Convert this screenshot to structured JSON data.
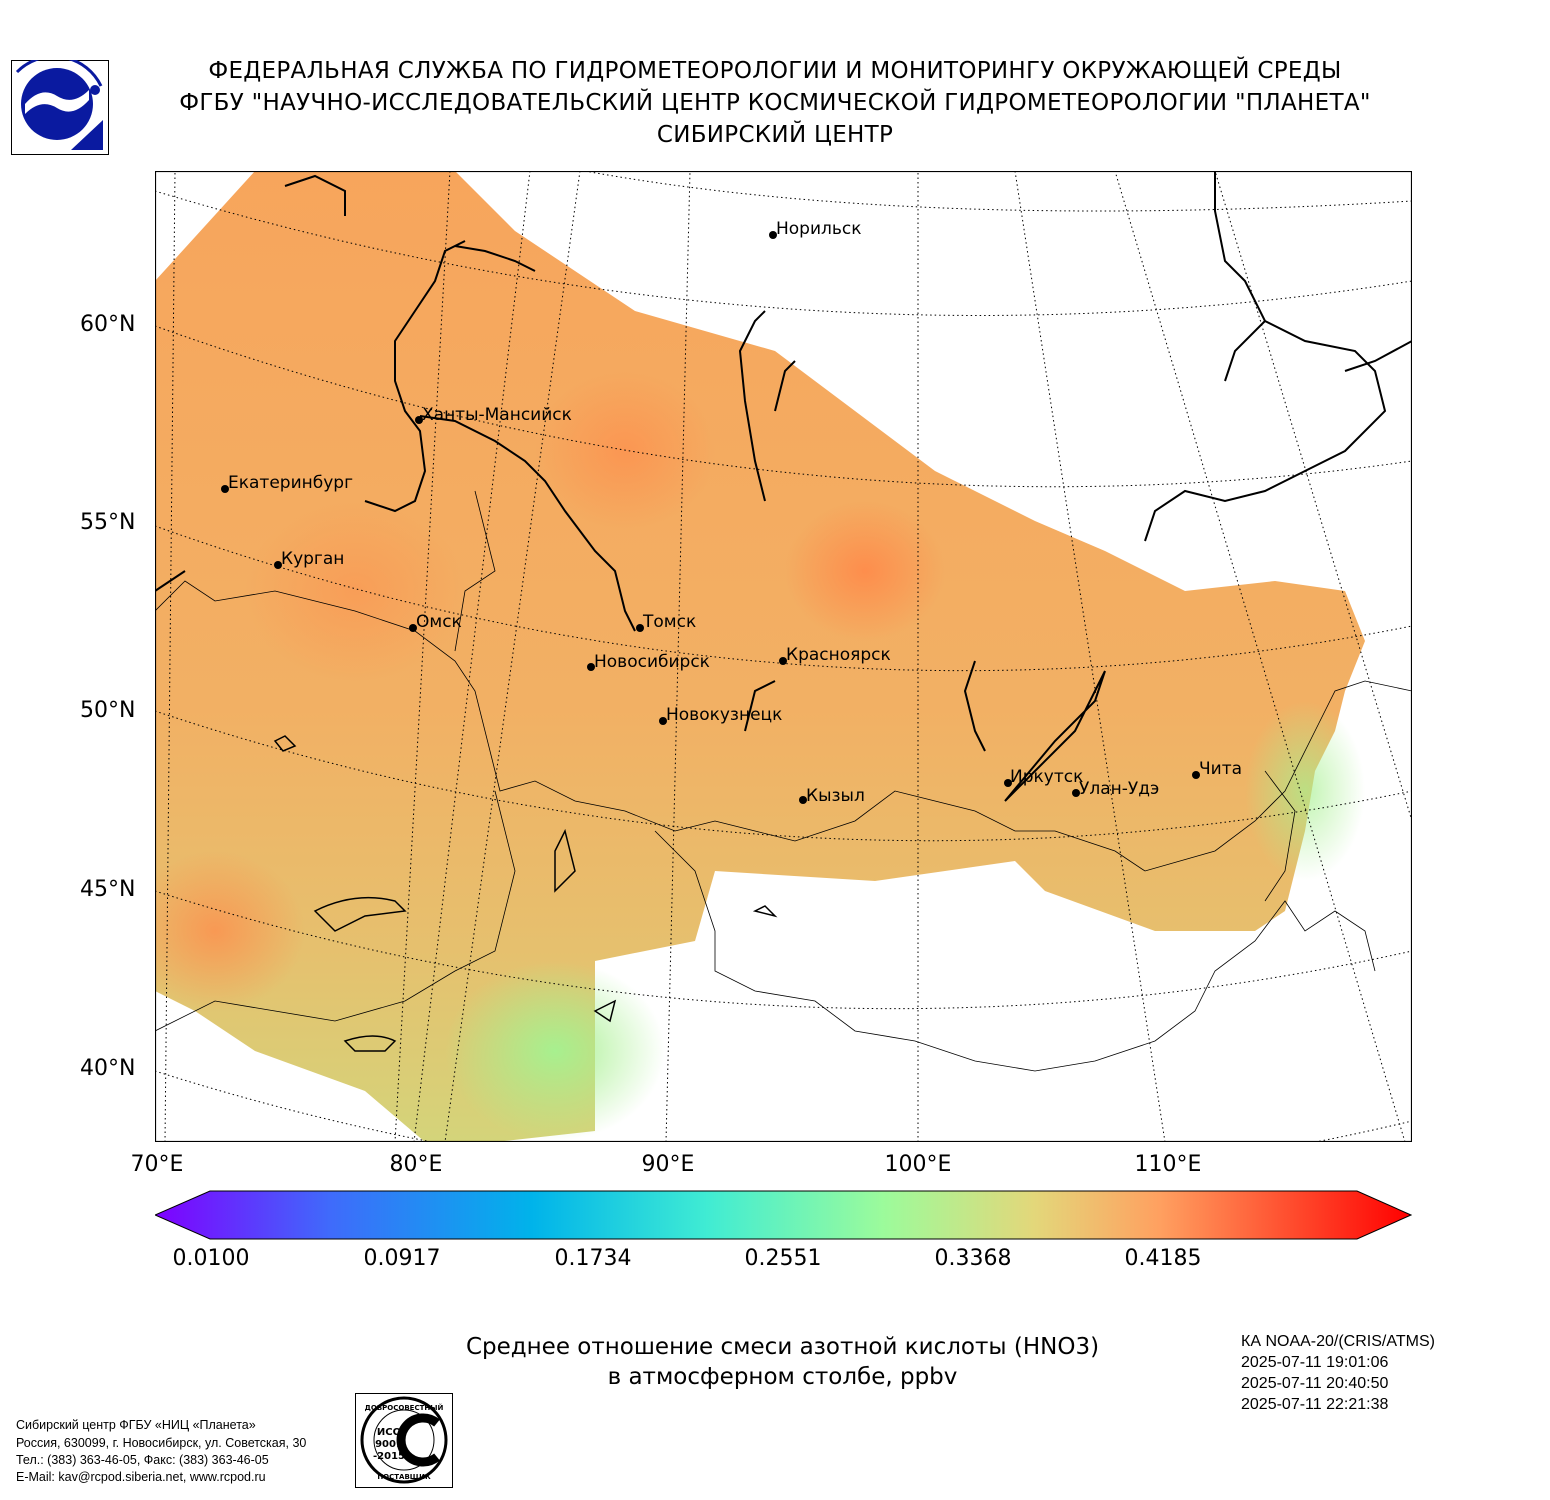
{
  "header": {
    "lines": [
      "ФЕДЕРАЛЬНАЯ СЛУЖБА ПО ГИДРОМЕТЕОРОЛОГИИ И МОНИТОРИНГУ ОКРУЖАЮЩЕЙ СРЕДЫ",
      "ФГБУ \"НАУЧНО-ИССЛЕДОВАТЕЛЬСКИЙ ЦЕНТР КОСМИЧЕСКОЙ ГИДРОМЕТЕОРОЛОГИИ \"ПЛАНЕТА\"",
      "СИБИРСКИЙ ЦЕНТР"
    ]
  },
  "map": {
    "lat_labels": [
      "60°N",
      "55°N",
      "50°N",
      "45°N",
      "40°N"
    ],
    "lon_labels": [
      "70°E",
      "80°E",
      "90°E",
      "100°E",
      "110°E"
    ],
    "cities": [
      {
        "name": "Норильск"
      },
      {
        "name": "Ханты-Мансийск"
      },
      {
        "name": "Екатеринбург"
      },
      {
        "name": "Курган"
      },
      {
        "name": "Омск"
      },
      {
        "name": "Томск"
      },
      {
        "name": "Новосибирск"
      },
      {
        "name": "Красноярск"
      },
      {
        "name": "Новокузнецк"
      },
      {
        "name": "Кызыл"
      },
      {
        "name": "Иркутск"
      },
      {
        "name": "Улан-Удэ"
      },
      {
        "name": "Чита"
      }
    ]
  },
  "colorbar": {
    "ticks": [
      "0.0100",
      "0.0917",
      "0.1734",
      "0.2551",
      "0.3368",
      "0.4185"
    ],
    "min": 0.01,
    "max": 0.5002,
    "colors": [
      "#7f00ff",
      "#3f6bfb",
      "#00b3ea",
      "#40ecd3",
      "#9cfb9b",
      "#e3d77a",
      "#ffa060",
      "#ff0000"
    ]
  },
  "title": {
    "line1": "Среднее отношение смеси азотной кислоты (HNO3)",
    "line2": "в атмосферном столбе, ppbv"
  },
  "satellite": {
    "name": "КА NOAA-20/(CRIS/ATMS)",
    "times": [
      "2025-07-11 19:01:06",
      "2025-07-11 20:40:50",
      "2025-07-11 22:21:38"
    ]
  },
  "footer": {
    "lines": [
      "Сибирский центр ФГБУ «НИЦ «Планета»",
      "Россия, 630099, г. Новосибирск, ул. Советская, 30",
      "Тел.: (383) 363-46-05, Факс: (383) 363-46-05",
      "E-Mail: kav@rcpod.siberia.net, www.rcpod.ru"
    ]
  },
  "iso_badge": {
    "top_text": "ДОБРОСОВЕСТНЫЙ",
    "line1": "ИСО",
    "line2": "9001",
    "line3": "-2015",
    "bottom_text": "ПОСТАВЩИК"
  }
}
